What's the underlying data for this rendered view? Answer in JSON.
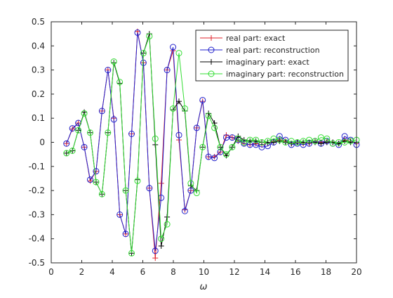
{
  "chart_data": {
    "type": "line",
    "title": "",
    "xlabel": "ω",
    "ylabel": "",
    "xlim": [
      0,
      20
    ],
    "ylim": [
      -0.5,
      0.5
    ],
    "xticks": [
      "0",
      "2",
      "4",
      "6",
      "8",
      "10",
      "12",
      "14",
      "16",
      "18",
      "20"
    ],
    "yticks": [
      "-0.5",
      "-0.4",
      "-0.3",
      "-0.2",
      "-0.1",
      "0",
      "0.1",
      "0.2",
      "0.3",
      "0.4",
      "0.5"
    ],
    "xtick_values": [
      0,
      2,
      4,
      6,
      8,
      10,
      12,
      14,
      16,
      18,
      20
    ],
    "ytick_values": [
      -0.5,
      -0.4,
      -0.3,
      -0.2,
      -0.1,
      0,
      0.1,
      0.2,
      0.3,
      0.4,
      0.5
    ],
    "grid": false,
    "legend_position": "top-right",
    "x": [
      1.0,
      1.3878,
      1.7755,
      2.1633,
      2.551,
      2.9388,
      3.3265,
      3.7143,
      4.102,
      4.4898,
      4.8776,
      5.2653,
      5.6531,
      6.0408,
      6.4286,
      6.8163,
      7.2041,
      7.5918,
      7.9796,
      8.3673,
      8.7551,
      9.1429,
      9.5306,
      9.9184,
      10.3061,
      10.6939,
      11.0816,
      11.4694,
      11.8571,
      12.2449,
      12.6327,
      13.0204,
      13.4082,
      13.7959,
      14.1837,
      14.5714,
      14.9592,
      15.3469,
      15.7347,
      16.1224,
      16.5102,
      16.898,
      17.2857,
      17.6735,
      18.0612,
      18.449,
      18.8367,
      19.2245,
      19.6122,
      20.0
    ],
    "series": [
      {
        "name": "real part: exact",
        "color": "#e0202a",
        "marker": "plus",
        "values": [
          -0.005,
          0.055,
          0.08,
          -0.02,
          -0.16,
          -0.12,
          0.13,
          0.3,
          0.1,
          -0.3,
          -0.38,
          0.035,
          0.46,
          0.33,
          -0.19,
          -0.48,
          -0.17,
          0.3,
          0.38,
          0.01,
          -0.28,
          -0.2,
          0.06,
          0.17,
          -0.06,
          -0.06,
          -0.04,
          0.03,
          0.02,
          0.005,
          -0.005,
          -0.01,
          -0.005,
          -0.01,
          -0.005,
          0.005,
          0.01,
          0.005,
          -0.005,
          0.0,
          -0.005,
          -0.005,
          0.005,
          0.0,
          0.005,
          0.0,
          -0.005,
          0.01,
          0.005,
          -0.005
        ]
      },
      {
        "name": "real part: reconstruction",
        "color": "#2222cc",
        "marker": "circle",
        "values": [
          -0.005,
          0.058,
          0.08,
          -0.02,
          -0.155,
          -0.12,
          0.13,
          0.3,
          0.095,
          -0.3,
          -0.38,
          0.035,
          0.455,
          0.33,
          -0.19,
          -0.45,
          -0.23,
          0.3,
          0.395,
          0.03,
          -0.285,
          -0.2,
          0.06,
          0.175,
          -0.06,
          -0.065,
          -0.04,
          0.02,
          0.02,
          0.01,
          -0.005,
          -0.01,
          -0.01,
          -0.02,
          -0.015,
          0.0,
          0.025,
          0.01,
          -0.01,
          -0.005,
          -0.01,
          -0.005,
          0.005,
          -0.005,
          0.005,
          -0.005,
          -0.01,
          0.025,
          0.01,
          -0.01
        ]
      },
      {
        "name": "imaginary part: exact",
        "color": "#000000",
        "marker": "plus",
        "values": [
          -0.045,
          -0.035,
          0.05,
          0.125,
          0.04,
          -0.165,
          -0.215,
          0.04,
          0.33,
          0.245,
          -0.2,
          -0.46,
          -0.155,
          0.37,
          0.45,
          -0.01,
          -0.43,
          -0.31,
          0.135,
          0.17,
          0.13,
          -0.18,
          -0.2,
          -0.02,
          0.12,
          0.08,
          -0.02,
          -0.055,
          -0.02,
          0.025,
          0.01,
          0.005,
          0.005,
          0.0,
          0.0,
          0.0,
          0.005,
          0.0,
          -0.005,
          0.0,
          0.0,
          0.0,
          0.0,
          -0.005,
          0.0,
          0.0,
          -0.005,
          0.005,
          0.0,
          0.0
        ]
      },
      {
        "name": "imaginary part: reconstruction",
        "color": "#33dd33",
        "marker": "circle",
        "values": [
          -0.045,
          -0.035,
          0.05,
          0.12,
          0.04,
          -0.165,
          -0.215,
          0.04,
          0.335,
          0.25,
          -0.2,
          -0.46,
          -0.16,
          0.37,
          0.44,
          0.015,
          -0.4,
          -0.34,
          0.14,
          0.37,
          0.14,
          -0.17,
          -0.21,
          -0.02,
          0.11,
          0.06,
          -0.02,
          -0.05,
          -0.02,
          0.015,
          0.0,
          0.01,
          0.01,
          0.0,
          0.005,
          0.015,
          0.01,
          0.0,
          0.005,
          0.0,
          0.005,
          0.01,
          0.005,
          0.02,
          0.015,
          -0.005,
          0.0,
          0.0,
          0.005,
          0.01
        ]
      }
    ]
  }
}
